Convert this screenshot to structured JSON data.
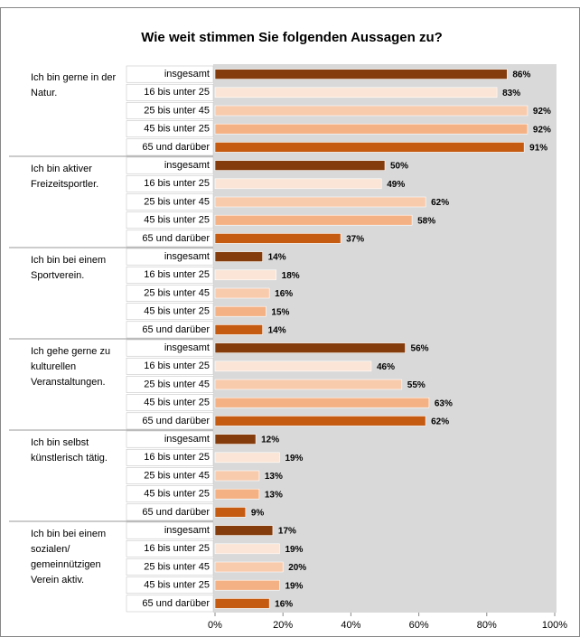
{
  "chart_data": {
    "type": "bar",
    "orientation": "horizontal",
    "title": "Wie weit stimmen Sie folgenden Aussagen zu?",
    "categories": [
      "Ich bin gerne in der Natur.",
      "Ich bin aktiver Freizeitsportler.",
      "Ich bin bei einem Sportverein.",
      "Ich gehe gerne zu kulturellen Veranstaltungen.",
      "Ich bin selbst künstlerisch tätig.",
      "Ich bin bei einem sozialen/ gemeinnützigen Verein aktiv."
    ],
    "series": [
      {
        "name": "insgesamt",
        "color": "#843c0c",
        "values": [
          86,
          50,
          14,
          56,
          12,
          17
        ],
        "value_labels": [
          "86%",
          "50%",
          "14%",
          "56%",
          "12%",
          "17%"
        ]
      },
      {
        "name": "16 bis unter 25",
        "color": "#fbe5d6",
        "values": [
          83,
          49,
          18,
          46,
          19,
          19
        ],
        "value_labels": [
          "83%",
          "49%",
          "18%",
          "46%",
          "19%",
          "19%"
        ]
      },
      {
        "name": "25 bis unter 45",
        "color": "#f8cbad",
        "values": [
          92,
          62,
          16,
          55,
          13,
          20
        ],
        "value_labels": [
          "92%",
          "62%",
          "16%",
          "55%",
          "13%",
          "20%"
        ]
      },
      {
        "name": "45 bis unter 25",
        "color": "#f4b183",
        "values": [
          92,
          58,
          15,
          63,
          13,
          19
        ],
        "value_labels": [
          "92%",
          "58%",
          "15%",
          "63%",
          "13%",
          "19%"
        ]
      },
      {
        "name": "65 und darüber",
        "color": "#c55a11",
        "values": [
          91,
          37,
          14,
          62,
          9,
          16
        ],
        "value_labels": [
          "91%",
          "37%",
          "14%",
          "62%",
          "9%",
          "16%"
        ]
      }
    ],
    "xlim": [
      0,
      100
    ],
    "xticks": [
      {
        "value": 0,
        "label": "0%"
      },
      {
        "value": 20,
        "label": "20%"
      },
      {
        "value": 40,
        "label": "40%"
      },
      {
        "value": 60,
        "label": "60%"
      },
      {
        "value": 80,
        "label": "80%"
      },
      {
        "value": 100,
        "label": "100%"
      }
    ]
  }
}
